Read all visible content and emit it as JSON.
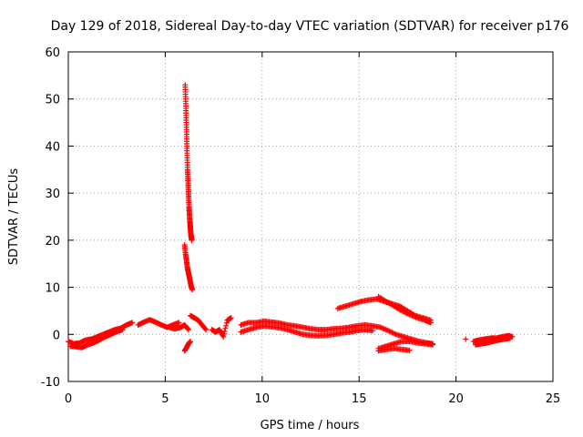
{
  "chart_data": {
    "type": "scatter",
    "title": "Day 129 of 2018, Sidereal Day-to-day VTEC variation (SDTVAR) for receiver p176",
    "xlabel": "GPS time / hours",
    "ylabel": "SDTVAR / TECUs",
    "xlim": [
      0,
      25
    ],
    "ylim": [
      -10,
      60
    ],
    "xticks": [
      0,
      5,
      10,
      15,
      20,
      25
    ],
    "yticks": [
      -10,
      0,
      10,
      20,
      30,
      40,
      50,
      60
    ],
    "xtick_labels": [
      "0",
      "5",
      "10",
      "15",
      "20",
      "25"
    ],
    "ytick_labels": [
      "-10",
      "0",
      "10",
      "20",
      "30",
      "40",
      "50",
      "60"
    ],
    "grid": true,
    "marker": "+",
    "color": "#ff0000",
    "series": [
      {
        "name": "SDTVAR",
        "segments": [
          {
            "x": [
              0.0,
              0.3,
              0.6,
              0.9,
              1.2,
              1.5,
              1.8,
              2.1,
              2.4,
              2.7,
              3.0,
              3.3
            ],
            "y": [
              -1.5,
              -2.0,
              -1.8,
              -1.2,
              -1.0,
              -0.5,
              0.0,
              0.5,
              1.0,
              1.3,
              2.0,
              2.5
            ]
          },
          {
            "x": [
              0.1,
              0.4,
              0.7,
              1.0,
              1.3,
              1.6,
              1.9,
              2.2,
              2.5,
              2.8
            ],
            "y": [
              -2.5,
              -2.6,
              -2.8,
              -2.2,
              -1.8,
              -1.2,
              -0.5,
              0.0,
              0.6,
              1.0
            ]
          },
          {
            "x": [
              3.6,
              3.9,
              4.2,
              4.5,
              4.8,
              5.1,
              5.4,
              5.7
            ],
            "y": [
              2.0,
              2.6,
              3.1,
              2.6,
              2.0,
              1.5,
              2.0,
              2.5
            ]
          },
          {
            "x": [
              5.2,
              5.5,
              5.8,
              6.0,
              6.2
            ],
            "y": [
              1.5,
              1.2,
              1.5,
              2.0,
              1.0
            ]
          },
          {
            "x": [
              6.03,
              6.05,
              6.07,
              6.09,
              6.11,
              6.13,
              6.15,
              6.17,
              6.19,
              6.21,
              6.23,
              6.25,
              6.27,
              6.29,
              6.31,
              6.33,
              6.35,
              6.37
            ],
            "y": [
              53,
              50,
              47,
              44,
              41,
              38,
              35,
              33,
              31,
              29,
              27,
              25.5,
              24,
              23,
              22,
              21,
              20.5,
              20
            ]
          },
          {
            "x": [
              6.0,
              6.05,
              6.1,
              6.15,
              6.2,
              6.25,
              6.3,
              6.35,
              6.4
            ],
            "y": [
              19,
              17,
              15.5,
              14,
              13,
              12,
              11,
              10,
              9.5
            ]
          },
          {
            "x": [
              6.0,
              6.1,
              6.2,
              6.3
            ],
            "y": [
              -3.5,
              -2.8,
              -2.0,
              -1.5
            ]
          },
          {
            "x": [
              6.3,
              6.5,
              6.7,
              6.9,
              7.1
            ],
            "y": [
              4.0,
              3.5,
              3.0,
              2.0,
              1.0
            ]
          },
          {
            "x": [
              7.4,
              7.6,
              7.8,
              8.0,
              8.2,
              8.4
            ],
            "y": [
              1.0,
              0.5,
              1.0,
              -0.5,
              3.0,
              3.5
            ]
          },
          {
            "x": [
              8.9,
              9.3,
              9.7,
              10.1,
              10.5,
              10.9,
              11.3,
              11.7,
              12.1,
              12.5,
              12.9,
              13.3,
              13.7,
              14.1,
              14.5,
              14.9,
              15.3,
              15.7,
              16.1,
              16.5,
              16.9,
              17.3,
              17.7,
              18.1,
              18.5,
              18.8
            ],
            "y": [
              2.0,
              2.5,
              2.5,
              2.8,
              2.6,
              2.4,
              2.0,
              1.8,
              1.5,
              1.2,
              1.0,
              1.0,
              1.2,
              1.3,
              1.5,
              1.8,
              2.0,
              1.8,
              1.5,
              0.8,
              0.0,
              -0.5,
              -1.0,
              -1.5,
              -1.8,
              -2.0
            ]
          },
          {
            "x": [
              8.9,
              9.3,
              9.7,
              10.1,
              10.5,
              10.9,
              11.3,
              11.7,
              12.1,
              12.5,
              12.9,
              13.3,
              13.7,
              14.1,
              14.5,
              14.9,
              15.3,
              15.7
            ],
            "y": [
              0.5,
              1.0,
              1.5,
              1.8,
              1.6,
              1.4,
              1.0,
              0.5,
              0.0,
              -0.2,
              -0.3,
              -0.2,
              0.0,
              0.3,
              0.5,
              0.8,
              1.0,
              0.8
            ]
          },
          {
            "x": [
              13.9,
              14.3,
              14.7,
              15.1,
              15.5,
              15.9,
              16.3,
              16.7,
              17.1,
              17.5,
              17.9,
              18.3,
              18.7
            ],
            "y": [
              5.5,
              6.0,
              6.5,
              7.0,
              7.3,
              7.5,
              7.0,
              6.5,
              6.0,
              5.0,
              4.0,
              3.5,
              3.0
            ]
          },
          {
            "x": [
              16.0,
              16.4,
              16.8,
              17.2,
              17.6,
              18.0,
              18.4,
              18.7
            ],
            "y": [
              8.0,
              7.0,
              6.0,
              5.0,
              4.2,
              3.5,
              3.0,
              2.5
            ]
          },
          {
            "x": [
              16.0,
              16.4,
              16.8,
              17.2,
              17.6,
              18.0,
              18.4,
              18.8
            ],
            "y": [
              -3.0,
              -2.5,
              -2.0,
              -1.5,
              -1.5,
              -1.8,
              -2.0,
              -2.2
            ]
          },
          {
            "x": [
              16.0,
              16.4,
              16.8,
              17.2,
              17.6
            ],
            "y": [
              -3.5,
              -3.2,
              -3.0,
              -3.2,
              -3.4
            ]
          },
          {
            "x": [
              20.5
            ],
            "y": [
              -1.0
            ]
          },
          {
            "x": [
              20.9,
              21.2,
              21.5,
              21.8,
              22.1,
              22.4,
              22.7,
              22.9
            ],
            "y": [
              -1.5,
              -1.2,
              -1.0,
              -0.8,
              -0.8,
              -0.5,
              -0.3,
              -0.5
            ]
          },
          {
            "x": [
              21.0,
              21.3,
              21.6,
              21.9,
              22.2,
              22.5,
              22.8
            ],
            "y": [
              -2.2,
              -2.0,
              -1.8,
              -1.5,
              -1.2,
              -1.0,
              -0.8
            ]
          }
        ]
      }
    ]
  }
}
